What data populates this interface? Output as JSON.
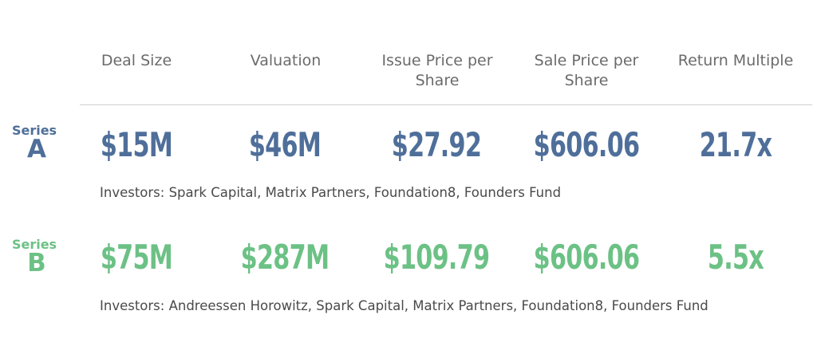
{
  "colors": {
    "series_a": "#4f6f9a",
    "series_b": "#6cc185",
    "header_text": "#6b6b6b",
    "body_text": "#4a4a4a",
    "divider": "#cfcfcf"
  },
  "headers": [
    "Deal Size",
    "Valuation",
    "Issue Price per Share",
    "Sale Price per Share",
    "Return Multiple"
  ],
  "rounds": [
    {
      "series_word": "Series",
      "series_letter": "A",
      "values": [
        "$15M",
        "$46M",
        "$27.92",
        "$606.06",
        "21.7x"
      ],
      "investors": "Investors: Spark Capital, Matrix Partners, Foundation8, Founders Fund"
    },
    {
      "series_word": "Series",
      "series_letter": "B",
      "values": [
        "$75M",
        "$287M",
        "$109.79",
        "$606.06",
        "5.5x"
      ],
      "investors": "Investors: Andreessen Horowitz, Spark Capital, Matrix Partners, Foundation8, Founders Fund"
    }
  ],
  "chart_data": {
    "type": "table",
    "columns": [
      "Deal Size",
      "Valuation",
      "Issue Price per Share",
      "Sale Price per Share",
      "Return Multiple"
    ],
    "rows": [
      {
        "label": "Series A",
        "cells": [
          "$15M",
          "$46M",
          "$27.92",
          "$606.06",
          "21.7x"
        ]
      },
      {
        "label": "Series B",
        "cells": [
          "$75M",
          "$287M",
          "$109.79",
          "$606.06",
          "5.5x"
        ]
      }
    ]
  }
}
